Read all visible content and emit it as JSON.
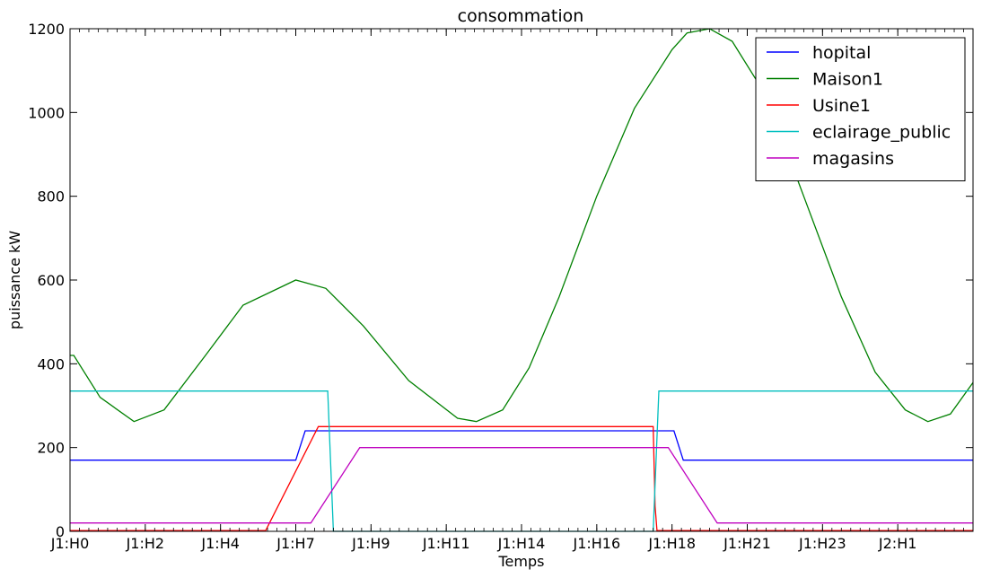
{
  "chart_data": {
    "type": "line",
    "title": "consommation",
    "xlabel": "Temps",
    "ylabel": "puissance kW",
    "xlim": [
      0,
      24
    ],
    "ylim": [
      0,
      1200
    ],
    "x_ticks": [
      {
        "x": 0,
        "label": "J1:H0"
      },
      {
        "x": 2,
        "label": "J1:H2"
      },
      {
        "x": 4,
        "label": "J1:H4"
      },
      {
        "x": 6,
        "label": "J1:H7"
      },
      {
        "x": 8,
        "label": "J1:H9"
      },
      {
        "x": 10,
        "label": "J1:H11"
      },
      {
        "x": 12,
        "label": "J1:H14"
      },
      {
        "x": 14,
        "label": "J1:H16"
      },
      {
        "x": 16,
        "label": "J1:H18"
      },
      {
        "x": 18,
        "label": "J1:H21"
      },
      {
        "x": 20,
        "label": "J1:H23"
      },
      {
        "x": 22,
        "label": "J2:H1"
      }
    ],
    "y_ticks": [
      0,
      200,
      400,
      600,
      800,
      1000,
      1200
    ],
    "grid": false,
    "legend_position": "top-right",
    "series": [
      {
        "name": "hopital",
        "color": "#0000ff",
        "points": [
          [
            0,
            170
          ],
          [
            6,
            170
          ],
          [
            6.25,
            240
          ],
          [
            16.05,
            240
          ],
          [
            16.3,
            170
          ],
          [
            24,
            170
          ]
        ]
      },
      {
        "name": "Maison1",
        "color": "#008000",
        "points": [
          [
            0,
            420
          ],
          [
            0.1,
            420
          ],
          [
            0.8,
            320
          ],
          [
            1.7,
            262
          ],
          [
            2.5,
            290
          ],
          [
            3.6,
            420
          ],
          [
            4.6,
            540
          ],
          [
            6,
            600
          ],
          [
            6.8,
            580
          ],
          [
            7.8,
            490
          ],
          [
            9,
            360
          ],
          [
            10.3,
            270
          ],
          [
            10.8,
            262
          ],
          [
            11.5,
            290
          ],
          [
            12.2,
            390
          ],
          [
            13,
            560
          ],
          [
            14,
            800
          ],
          [
            15,
            1010
          ],
          [
            16,
            1150
          ],
          [
            16.4,
            1190
          ],
          [
            17,
            1200
          ],
          [
            17.6,
            1170
          ],
          [
            18.5,
            1040
          ],
          [
            19.5,
            800
          ],
          [
            20.5,
            560
          ],
          [
            21.4,
            380
          ],
          [
            22.2,
            290
          ],
          [
            22.8,
            262
          ],
          [
            23.4,
            280
          ],
          [
            24,
            355
          ]
        ]
      },
      {
        "name": "Usine1",
        "color": "#ff0000",
        "points": [
          [
            0,
            2
          ],
          [
            5.2,
            2
          ],
          [
            6.6,
            250
          ],
          [
            15.5,
            250
          ],
          [
            15.55,
            60
          ],
          [
            15.6,
            2
          ],
          [
            24,
            2
          ]
        ]
      },
      {
        "name": "eclairage_public",
        "color": "#00bfbf",
        "points": [
          [
            0,
            335
          ],
          [
            6.85,
            335
          ],
          [
            7.0,
            0
          ],
          [
            15.5,
            0
          ],
          [
            15.65,
            335
          ],
          [
            24,
            335
          ]
        ]
      },
      {
        "name": "magasins",
        "color": "#bf00bf",
        "points": [
          [
            0,
            20
          ],
          [
            6.4,
            20
          ],
          [
            7.7,
            200
          ],
          [
            15.9,
            200
          ],
          [
            17.2,
            20
          ],
          [
            24,
            20
          ]
        ]
      }
    ]
  }
}
